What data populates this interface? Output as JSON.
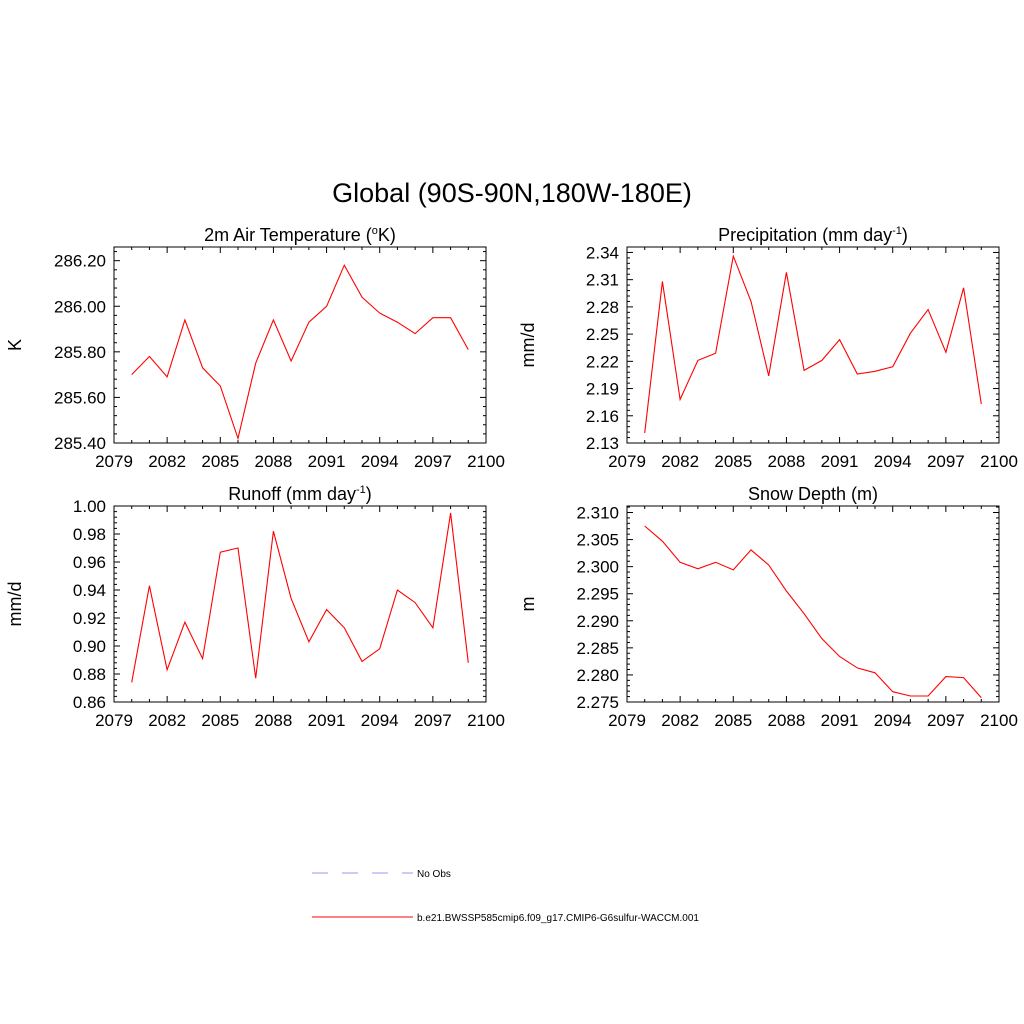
{
  "figure": {
    "title": "Global (90S-90N,180W-180E)"
  },
  "legend": [
    {
      "label": "No Obs",
      "color": "#9a9af0",
      "dash": true
    },
    {
      "label": "b.e21.BWSSP585cmip6.f09_g17.CMIP6-G6sulfur-WACCM.001",
      "color": "#ff0000",
      "dash": false
    }
  ],
  "chart_data": [
    {
      "type": "line",
      "title": "2m Air Temperature (",
      "title_sup": "o",
      "title_end": "K)",
      "ylabel": "K",
      "xlim": [
        2079,
        2100
      ],
      "ylim": [
        285.4,
        286.26
      ],
      "xticks": [
        2079,
        2082,
        2085,
        2088,
        2091,
        2094,
        2097,
        2100
      ],
      "yticks": [
        "285.40",
        "285.60",
        "285.80",
        "286.00",
        "286.20"
      ],
      "series": [
        {
          "color": "#ff0000",
          "x": [
            2080,
            2081,
            2082,
            2083,
            2084,
            2085,
            2086,
            2087,
            2088,
            2089,
            2090,
            2091,
            2092,
            2093,
            2094,
            2095,
            2096,
            2097,
            2098,
            2099
          ],
          "y": [
            285.7,
            285.78,
            285.69,
            285.94,
            285.73,
            285.65,
            285.42,
            285.75,
            285.94,
            285.76,
            285.93,
            286.0,
            286.18,
            286.04,
            285.97,
            285.93,
            285.88,
            285.95,
            285.95,
            285.81
          ]
        }
      ]
    },
    {
      "type": "line",
      "title": "Precipitation (mm day",
      "title_sup": "-1",
      "title_end": ")",
      "ylabel": "mm/d",
      "xlim": [
        2079,
        2100
      ],
      "ylim": [
        2.13,
        2.346
      ],
      "xticks": [
        2079,
        2082,
        2085,
        2088,
        2091,
        2094,
        2097,
        2100
      ],
      "yticks": [
        "2.13",
        "2.16",
        "2.19",
        "2.22",
        "2.25",
        "2.28",
        "2.31",
        "2.34"
      ],
      "series": [
        {
          "color": "#ff0000",
          "x": [
            2080,
            2081,
            2082,
            2083,
            2084,
            2085,
            2086,
            2087,
            2088,
            2089,
            2090,
            2091,
            2092,
            2093,
            2094,
            2095,
            2096,
            2097,
            2098,
            2099
          ],
          "y": [
            2.141,
            2.308,
            2.178,
            2.221,
            2.229,
            2.336,
            2.286,
            2.204,
            2.318,
            2.21,
            2.221,
            2.244,
            2.206,
            2.209,
            2.214,
            2.251,
            2.277,
            2.23,
            2.301,
            2.173
          ]
        }
      ]
    },
    {
      "type": "line",
      "title": "Runoff (mm day",
      "title_sup": "-1",
      "title_end": ")",
      "ylabel": "mm/d",
      "xlim": [
        2079,
        2100
      ],
      "ylim": [
        0.86,
        1.0
      ],
      "xticks": [
        2079,
        2082,
        2085,
        2088,
        2091,
        2094,
        2097,
        2100
      ],
      "yticks": [
        "0.86",
        "0.88",
        "0.90",
        "0.92",
        "0.94",
        "0.96",
        "0.98",
        "1.00"
      ],
      "series": [
        {
          "color": "#ff0000",
          "x": [
            2080,
            2081,
            2082,
            2083,
            2084,
            2085,
            2086,
            2087,
            2088,
            2089,
            2090,
            2091,
            2092,
            2093,
            2094,
            2095,
            2096,
            2097,
            2098,
            2099
          ],
          "y": [
            0.874,
            0.943,
            0.883,
            0.917,
            0.891,
            0.967,
            0.97,
            0.877,
            0.982,
            0.934,
            0.903,
            0.926,
            0.913,
            0.889,
            0.898,
            0.94,
            0.931,
            0.913,
            0.995,
            0.888
          ]
        }
      ]
    },
    {
      "type": "line",
      "title": "Snow Depth (m)",
      "title_sup": "",
      "title_end": "",
      "ylabel": "m",
      "xlim": [
        2079,
        2100
      ],
      "ylim": [
        2.275,
        2.3112
      ],
      "xticks": [
        2079,
        2082,
        2085,
        2088,
        2091,
        2094,
        2097,
        2100
      ],
      "yticks": [
        "2.275",
        "2.280",
        "2.285",
        "2.290",
        "2.295",
        "2.300",
        "2.305",
        "2.310"
      ],
      "series": [
        {
          "color": "#ff0000",
          "x": [
            2080,
            2081,
            2082,
            2083,
            2084,
            2085,
            2086,
            2087,
            2088,
            2089,
            2090,
            2091,
            2092,
            2093,
            2094,
            2095,
            2096,
            2097,
            2098,
            2099
          ],
          "y": [
            2.3075,
            2.3047,
            2.3008,
            2.2996,
            2.3008,
            2.2994,
            2.3031,
            2.3003,
            2.2955,
            2.2913,
            2.2867,
            2.2834,
            2.2813,
            2.2804,
            2.2769,
            2.2761,
            2.2761,
            2.2797,
            2.2795,
            2.2758
          ]
        }
      ]
    }
  ]
}
